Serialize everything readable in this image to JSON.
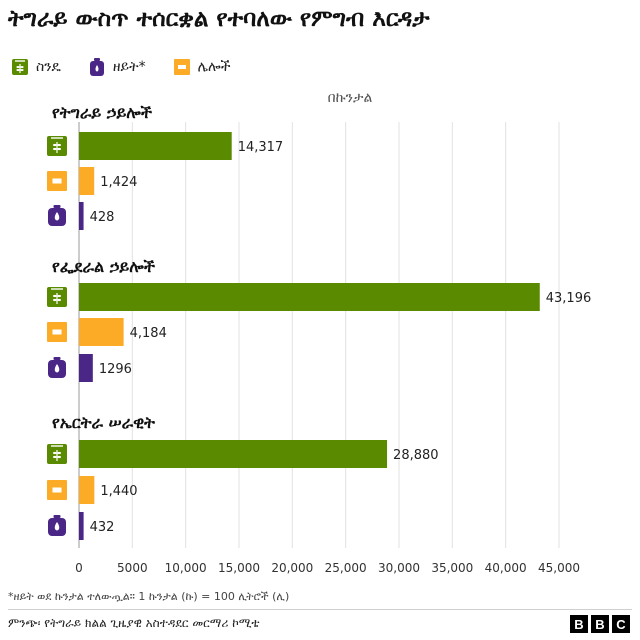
{
  "chart_data": {
    "type": "bar",
    "orientation": "horizontal",
    "title": "ትግራይ ውስጥ ተሰርቋል የተባለው የምግብ እርዳታ",
    "unit_label": "በኩንታል",
    "legend_placement": "top-left",
    "grid": true,
    "xlim": [
      0,
      45000
    ],
    "xticks": [
      "0",
      "5000",
      "10,000",
      "15,000",
      "20,000",
      "25,000",
      "30,000",
      "35,000",
      "40,000",
      "45,000"
    ],
    "series": [
      {
        "key": "wheat",
        "name": "ስንዴ",
        "color": "#5a8a00",
        "icon": "wheat-sack-icon"
      },
      {
        "key": "other",
        "name": "ሌሎች",
        "color": "#fcab27",
        "icon": "box-icon"
      },
      {
        "key": "oil",
        "name": "ዘይት*",
        "color": "#4a2787",
        "icon": "oil-can-icon"
      }
    ],
    "groups": [
      {
        "name": "የትግራይ ኃይሎች",
        "values": [
          14317,
          1424,
          428
        ],
        "labels": [
          "14,317",
          "1,424",
          "428"
        ]
      },
      {
        "name": "የፌደራል ኃይሎች",
        "values": [
          43196,
          4184,
          1296
        ],
        "labels": [
          "43,196",
          "4,184",
          "1296"
        ]
      },
      {
        "name": "የኤርትራ ሠራዊት",
        "values": [
          28880,
          1440,
          432
        ],
        "labels": [
          "28,880",
          "1,440",
          "432"
        ]
      }
    ]
  },
  "legend": [
    {
      "label": "ስንዴ",
      "icon": "wheat-sack-icon",
      "color": "#5a8a00"
    },
    {
      "label": "ዘይት*",
      "icon": "oil-can-icon",
      "color": "#4a2787"
    },
    {
      "label": "ሌሎች",
      "icon": "box-icon",
      "color": "#fcab27"
    }
  ],
  "footnote": "*ዘይት ወደ ኩንታል ተለውጧል። 1 ኩንታል (ኩ) = 100 ሊትሮች (ሊ)",
  "source": "ምንጭ፡ የትግራይ ክልል ጊዜያዊ አስተዳደር መርማሪ ኮሚቴ",
  "logo": [
    "B",
    "B",
    "C"
  ]
}
